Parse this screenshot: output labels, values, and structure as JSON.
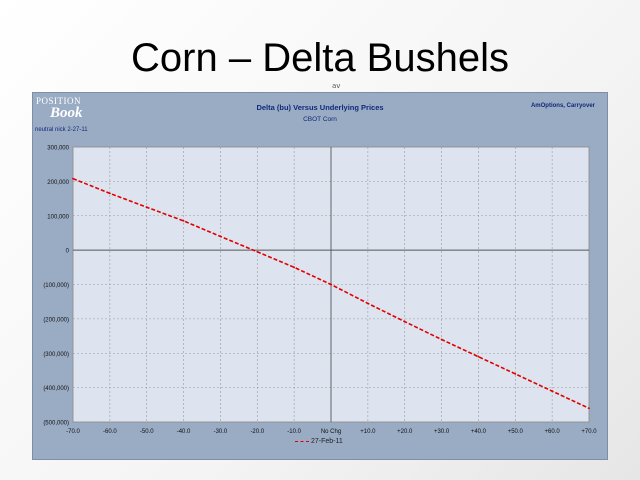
{
  "slide": {
    "title": "Corn – Delta Bushels",
    "mark": "av"
  },
  "logo": {
    "top": "POSITION",
    "bottom": "Book"
  },
  "subtitle_left": "neutral nick 2-27-11",
  "note_right": "AmOptions, Carryover",
  "colors": {
    "panel": "#9aabc4",
    "plot_bg": "#dde4ef",
    "line": "#e00000",
    "text": "#102a7a"
  },
  "chart_data": {
    "type": "line",
    "title": "Delta (bu) Versus Underlying Prices",
    "subtitle": "CBOT Corn",
    "xlabel": "",
    "ylabel": "",
    "categories": [
      "-70.0",
      "-60.0",
      "-50.0",
      "-40.0",
      "-30.0",
      "-20.0",
      "-10.0",
      "No Chg",
      "+10.0",
      "+20.0",
      "+30.0",
      "+40.0",
      "+50.0",
      "+60.0",
      "+70.0"
    ],
    "x": [
      -70,
      -60,
      -50,
      -40,
      -30,
      -20,
      -10,
      0,
      10,
      20,
      30,
      40,
      50,
      60,
      70
    ],
    "xlim": [
      -70,
      70
    ],
    "ylim": [
      -500000,
      300000
    ],
    "yticks": [
      300000,
      200000,
      100000,
      0,
      -100000,
      -200000,
      -300000,
      -400000,
      -500000
    ],
    "ytick_labels": [
      "300,000",
      "200,000",
      "100,000",
      "0",
      "(100,000)",
      "(200,000)",
      "(300,000)",
      "(400,000)",
      "(500,000)"
    ],
    "grid": true,
    "legend": "bottom",
    "series": [
      {
        "name": "27-Feb-11",
        "color": "#e00000",
        "values": [
          208000,
          165000,
          125000,
          85000,
          40000,
          -5000,
          -50000,
          -100000,
          -155000,
          -208000,
          -260000,
          -310000,
          -360000,
          -410000,
          -460000
        ]
      }
    ]
  }
}
